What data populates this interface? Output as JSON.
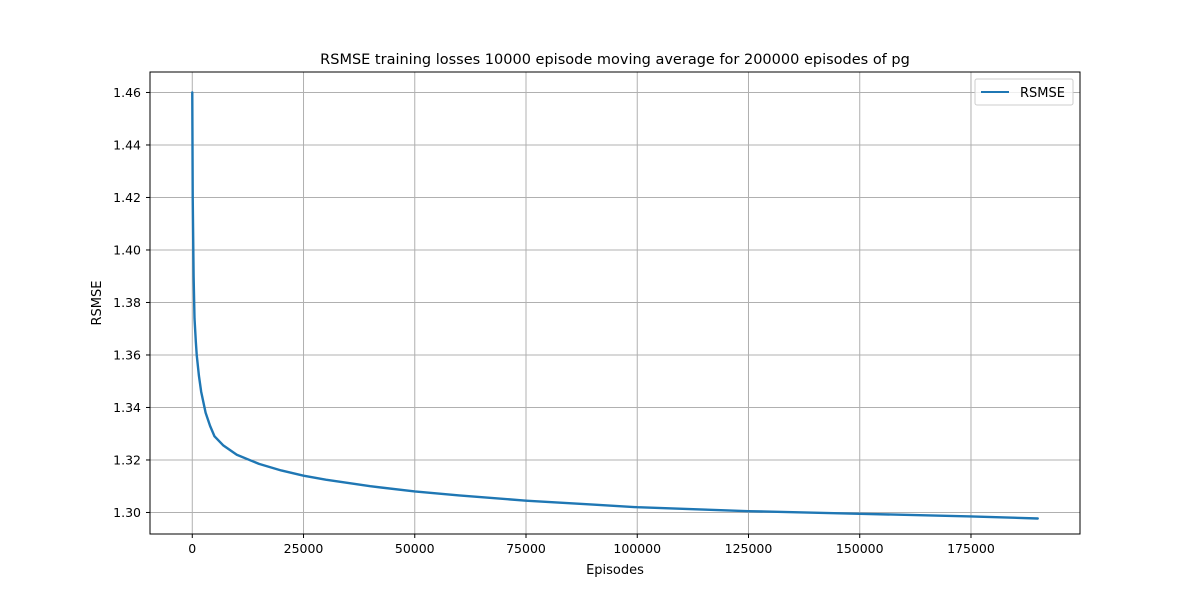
{
  "chart_data": {
    "type": "line",
    "title": "RSMSE training losses 10000 episode moving average for 200000 episodes of pg",
    "xlabel": "Episodes",
    "ylabel": "RSMSE",
    "xlim": [
      -9500,
      199500
    ],
    "ylim": [
      1.2918,
      1.4678
    ],
    "x_ticks": [
      0,
      25000,
      50000,
      75000,
      100000,
      125000,
      150000,
      175000
    ],
    "x_tick_labels": [
      "0",
      "25000",
      "50000",
      "75000",
      "100000",
      "125000",
      "150000",
      "175000"
    ],
    "y_ticks": [
      1.3,
      1.32,
      1.34,
      1.36,
      1.38,
      1.4,
      1.42,
      1.44,
      1.46
    ],
    "y_tick_labels": [
      "1.30",
      "1.32",
      "1.34",
      "1.36",
      "1.38",
      "1.40",
      "1.42",
      "1.44",
      "1.46"
    ],
    "grid": true,
    "legend_position": "top-right",
    "series": [
      {
        "name": "RSMSE",
        "color": "#1f77b4",
        "x": [
          0,
          100,
          300,
          500,
          800,
          1000,
          1500,
          2000,
          3000,
          4000,
          5000,
          7000,
          10000,
          15000,
          20000,
          25000,
          30000,
          40000,
          50000,
          60000,
          75000,
          90000,
          100000,
          125000,
          150000,
          175000,
          190000
        ],
        "y": [
          1.46,
          1.42,
          1.39,
          1.374,
          1.365,
          1.36,
          1.352,
          1.346,
          1.338,
          1.333,
          1.329,
          1.3255,
          1.322,
          1.3185,
          1.316,
          1.314,
          1.3125,
          1.31,
          1.308,
          1.3065,
          1.3045,
          1.303,
          1.302,
          1.3005,
          1.2995,
          1.2985,
          1.2977
        ]
      }
    ]
  }
}
